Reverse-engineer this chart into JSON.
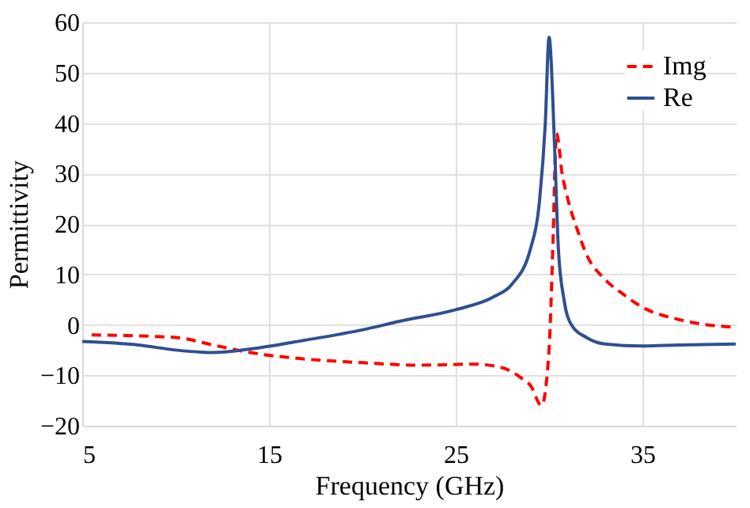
{
  "chart_data": {
    "type": "line",
    "xlabel": "Frequency (GHz)",
    "ylabel": "Permittivity",
    "xlim": [
      5,
      40
    ],
    "xticks": [
      5,
      15,
      25,
      35
    ],
    "ylim": [
      -20,
      60
    ],
    "yticks": [
      -20,
      -10,
      0,
      10,
      20,
      30,
      40,
      50,
      60
    ],
    "grid": true,
    "legend": "top right",
    "marker": "none",
    "series": [
      {
        "name": "Img",
        "color": "#ff0000",
        "line_style": "dashed",
        "x": [
          5.5,
          10,
          12,
          14,
          17,
          20,
          23,
          26,
          27.5,
          28.5,
          29,
          29.6,
          30,
          30.2,
          30.4,
          30.7,
          31,
          31.5,
          32,
          33,
          34,
          35,
          37,
          40
        ],
        "values": [
          -2,
          -2.5,
          -4,
          -5.5,
          -6.8,
          -7.5,
          -8,
          -7.8,
          -8.5,
          -10.5,
          -12,
          -16,
          -5,
          15,
          38,
          30,
          25,
          19,
          14,
          9,
          6,
          3.5,
          1,
          -0.5
        ]
      },
      {
        "name": "Re",
        "color": "#2f4f8f",
        "line_style": "solid",
        "x": [
          5,
          8,
          10,
          12,
          14,
          17,
          20,
          22,
          25,
          27,
          28,
          29,
          29.5,
          29.8,
          30,
          30.3,
          30.5,
          30.8,
          31.2,
          32,
          33,
          35,
          37,
          40
        ],
        "values": [
          -3.3,
          -4,
          -5,
          -5.5,
          -4.8,
          -3,
          -1,
          0.7,
          3,
          5.5,
          8,
          15,
          25,
          40,
          57,
          35,
          15,
          5,
          0,
          -2.5,
          -3.8,
          -4.2,
          -4,
          -3.8
        ]
      }
    ]
  }
}
